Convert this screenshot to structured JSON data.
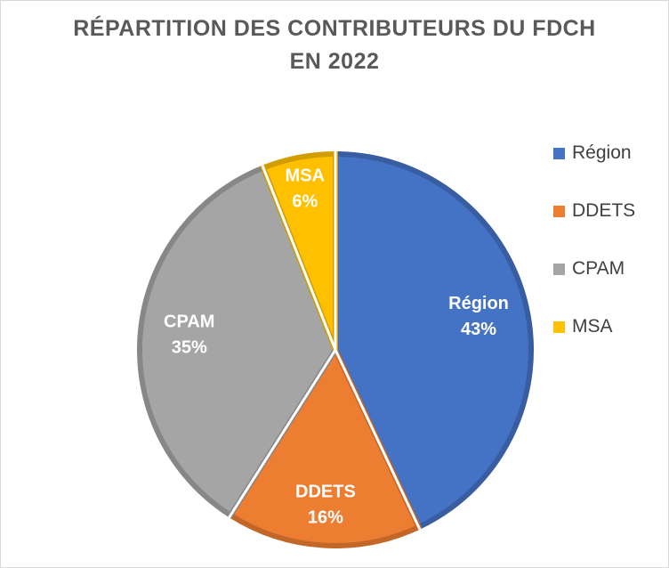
{
  "chart_data": {
    "type": "pie",
    "title": "RÉPARTITION DES CONTRIBUTEURS DU FDCH EN 2022",
    "title_lines": [
      "RÉPARTITION DES CONTRIBUTEURS DU FDCH",
      "EN 2022"
    ],
    "categories": [
      "Région",
      "DDETS",
      "CPAM",
      "MSA"
    ],
    "values": [
      43,
      16,
      35,
      6
    ],
    "labels": [
      "43%",
      "16%",
      "35%",
      "6%"
    ],
    "colors": [
      "#4472C4",
      "#ED7D31",
      "#A5A5A5",
      "#FFC000"
    ],
    "legend_position": "right"
  }
}
